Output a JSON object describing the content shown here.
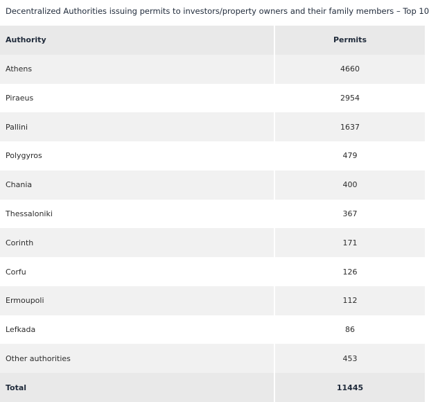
{
  "title": "Decentralized Authorities issuing permits to investors/property owners and their family members – Top 10",
  "table": {
    "header": [
      "Authority",
      "Permits"
    ],
    "rows": [
      [
        "Athens",
        4660
      ],
      [
        "Piraeus",
        2954
      ],
      [
        "Pallini",
        1637
      ],
      [
        "Polygyros",
        479
      ],
      [
        "Chania",
        400
      ],
      [
        "Thessaloniki",
        367
      ],
      [
        "Corinth",
        171
      ],
      [
        "Corfu",
        126
      ],
      [
        "Ermoupoli",
        112
      ],
      [
        "Lefkada",
        86
      ],
      [
        "Other authorities",
        453
      ]
    ],
    "total": [
      "Total",
      11445
    ]
  }
}
